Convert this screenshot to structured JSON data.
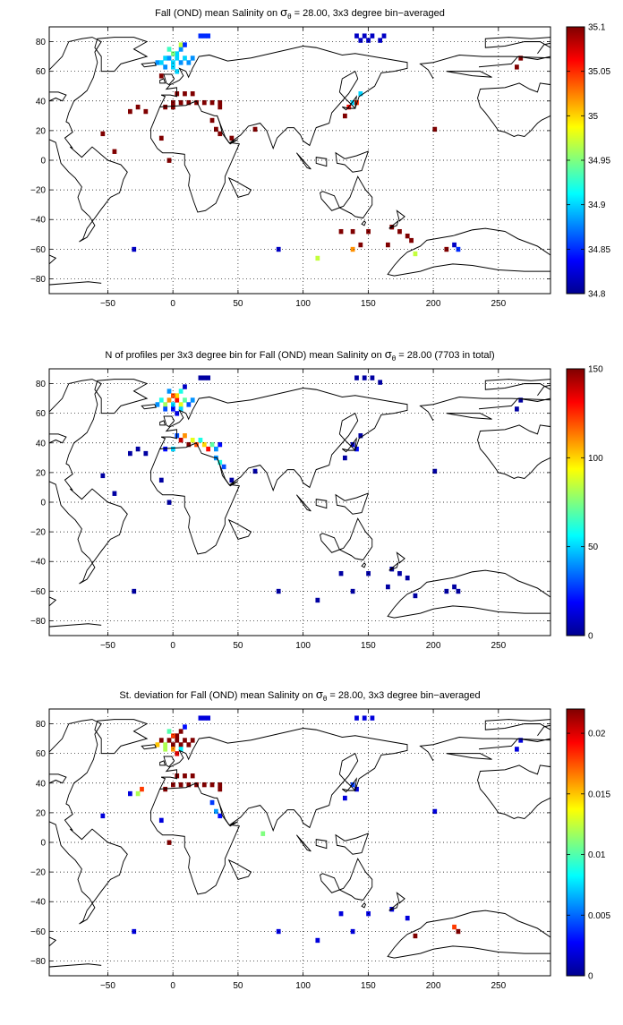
{
  "figure": {
    "panels": [
      {
        "title_prefix": "Fall (OND) mean Salinity on ",
        "title_sigma": "σ",
        "title_sub": "θ",
        "title_suffix": " = 28.00, 3x3 degree bin−averaged",
        "x_ticks": [
          "−50",
          "0",
          "50",
          "100",
          "150",
          "200",
          "250"
        ],
        "y_ticks": [
          "80",
          "60",
          "40",
          "20",
          "0",
          "−20",
          "−40",
          "−60",
          "−80"
        ],
        "colorbar_ticks": [
          "35.1",
          "35.05",
          "35",
          "34.95",
          "34.9",
          "34.85",
          "34.8"
        ],
        "colorbar_min": 34.8,
        "colorbar_max": 35.1
      },
      {
        "title_prefix": "N of profiles per 3x3 degree bin for Fall (OND) mean Salinity on ",
        "title_sigma": "σ",
        "title_sub": "θ",
        "title_suffix": " = 28.00 (7703 in total)",
        "x_ticks": [
          "−50",
          "0",
          "50",
          "100",
          "150",
          "200",
          "250"
        ],
        "y_ticks": [
          "80",
          "60",
          "40",
          "20",
          "0",
          "−20",
          "−40",
          "−60",
          "−80"
        ],
        "colorbar_ticks": [
          "150",
          "100",
          "50",
          "0"
        ],
        "colorbar_min": 0,
        "colorbar_max": 150
      },
      {
        "title_prefix": "St. deviation for Fall (OND) mean Salinity on ",
        "title_sigma": "σ",
        "title_sub": "θ",
        "title_suffix": " = 28.00, 3x3 degree bin−averaged",
        "x_ticks": [
          "−50",
          "0",
          "50",
          "100",
          "150",
          "200",
          "250"
        ],
        "y_ticks": [
          "80",
          "60",
          "40",
          "20",
          "0",
          "−20",
          "−40",
          "−60",
          "−80"
        ],
        "colorbar_ticks": [
          "0.02",
          "0.015",
          "0.01",
          "0.005",
          "0"
        ],
        "colorbar_min": 0,
        "colorbar_max": 0.022
      }
    ]
  },
  "chart_data": [
    {
      "type": "heatmap",
      "title": "Fall (OND) mean Salinity on σθ = 28.00, 3x3 degree bin−averaged",
      "xlim": [
        -95,
        290
      ],
      "ylim": [
        -90,
        90
      ],
      "x_ticks": [
        -50,
        0,
        50,
        100,
        150,
        200,
        250
      ],
      "y_ticks": [
        80,
        60,
        40,
        20,
        0,
        -20,
        -40,
        -60,
        -80
      ],
      "grid": true,
      "colorbar": {
        "min": 34.8,
        "max": 35.1,
        "placement": "right",
        "colormap": "jet"
      },
      "bin_size_deg": 3,
      "cells": [
        [
          -12,
          66,
          34.88
        ],
        [
          -9,
          66,
          34.9
        ],
        [
          -6,
          69,
          34.9
        ],
        [
          -3,
          69,
          34.88
        ],
        [
          0,
          66,
          34.9
        ],
        [
          3,
          69,
          34.9
        ],
        [
          6,
          66,
          34.88
        ],
        [
          9,
          69,
          34.9
        ],
        [
          12,
          66,
          34.88
        ],
        [
          15,
          69,
          34.88
        ],
        [
          3,
          72,
          34.9
        ],
        [
          6,
          75,
          34.88
        ],
        [
          -3,
          75,
          34.93
        ],
        [
          0,
          72,
          34.95
        ],
        [
          6,
          78,
          34.97
        ],
        [
          -6,
          63,
          34.88
        ],
        [
          0,
          63,
          34.9
        ],
        [
          3,
          60,
          34.9
        ],
        [
          9,
          78,
          34.85
        ],
        [
          21,
          84,
          34.85
        ],
        [
          24,
          84,
          34.85
        ],
        [
          27,
          84,
          34.85
        ],
        [
          3,
          45,
          35.1
        ],
        [
          9,
          45,
          35.1
        ],
        [
          15,
          45,
          35.1
        ],
        [
          0,
          39,
          35.1
        ],
        [
          6,
          39,
          35.1
        ],
        [
          12,
          39,
          35.1
        ],
        [
          18,
          39,
          35.1
        ],
        [
          24,
          39,
          35.1
        ],
        [
          30,
          39,
          35.1
        ],
        [
          36,
          39,
          35.1
        ],
        [
          -6,
          36,
          35.1
        ],
        [
          0,
          36,
          35.1
        ],
        [
          36,
          36,
          35.1
        ],
        [
          -27,
          36,
          35.1
        ],
        [
          -21,
          33,
          35.1
        ],
        [
          -33,
          33,
          35.1
        ],
        [
          -9,
          57,
          35.1
        ],
        [
          30,
          27,
          35.1
        ],
        [
          33,
          21,
          35.1
        ],
        [
          36,
          18,
          35.1
        ],
        [
          -54,
          18,
          35.1
        ],
        [
          -45,
          6,
          35.1
        ],
        [
          -9,
          15,
          35.1
        ],
        [
          -3,
          0,
          35.1
        ],
        [
          45,
          15,
          35.1
        ],
        [
          63,
          21,
          35.1
        ],
        [
          132,
          30,
          35.1
        ],
        [
          138,
          39,
          34.9
        ],
        [
          141,
          39,
          35.05
        ],
        [
          135,
          36,
          35.06
        ],
        [
          144,
          45,
          34.9
        ],
        [
          141,
          84,
          34.82
        ],
        [
          144,
          81,
          34.82
        ],
        [
          147,
          84,
          34.82
        ],
        [
          150,
          81,
          34.82
        ],
        [
          153,
          84,
          34.82
        ],
        [
          159,
          81,
          34.82
        ],
        [
          162,
          84,
          34.82
        ],
        [
          201,
          21,
          35.1
        ],
        [
          267,
          69,
          35.1
        ],
        [
          264,
          63,
          35.1
        ],
        [
          -30,
          -60,
          34.82
        ],
        [
          81,
          -60,
          34.82
        ],
        [
          111,
          -66,
          34.97
        ],
        [
          129,
          -48,
          35.1
        ],
        [
          138,
          -48,
          35.1
        ],
        [
          150,
          -48,
          35.1
        ],
        [
          138,
          -60,
          35.02
        ],
        [
          144,
          -57,
          35.1
        ],
        [
          165,
          -57,
          35.1
        ],
        [
          168,
          -45,
          35.1
        ],
        [
          174,
          -48,
          35.1
        ],
        [
          180,
          -51,
          35.1
        ],
        [
          183,
          -54,
          35.1
        ],
        [
          186,
          -63,
          34.97
        ],
        [
          210,
          -60,
          35.1
        ],
        [
          216,
          -57,
          34.82
        ],
        [
          219,
          -60,
          34.85
        ]
      ]
    },
    {
      "type": "heatmap",
      "title": "N of profiles per 3x3 degree bin for Fall (OND) mean Salinity on σθ = 28.00 (7703 in total)",
      "xlim": [
        -95,
        290
      ],
      "ylim": [
        -90,
        90
      ],
      "x_ticks": [
        -50,
        0,
        50,
        100,
        150,
        200,
        250
      ],
      "y_ticks": [
        80,
        60,
        40,
        20,
        0,
        -20,
        -40,
        -60,
        -80
      ],
      "grid": true,
      "colorbar": {
        "min": 0,
        "max": 150,
        "placement": "right",
        "colormap": "jet"
      },
      "bin_size_deg": 3,
      "cells": [
        [
          -12,
          66,
          40
        ],
        [
          -9,
          69,
          60
        ],
        [
          -6,
          66,
          80
        ],
        [
          -3,
          69,
          110
        ],
        [
          0,
          66,
          50
        ],
        [
          3,
          69,
          130
        ],
        [
          6,
          66,
          90
        ],
        [
          9,
          69,
          70
        ],
        [
          12,
          66,
          30
        ],
        [
          15,
          69,
          40
        ],
        [
          3,
          72,
          100
        ],
        [
          6,
          75,
          60
        ],
        [
          -3,
          75,
          40
        ],
        [
          0,
          72,
          120
        ],
        [
          6,
          63,
          50
        ],
        [
          0,
          63,
          20
        ],
        [
          -6,
          63,
          30
        ],
        [
          3,
          60,
          15
        ],
        [
          9,
          78,
          10
        ],
        [
          21,
          84,
          5
        ],
        [
          24,
          84,
          5
        ],
        [
          27,
          84,
          5
        ],
        [
          3,
          45,
          30
        ],
        [
          6,
          42,
          140
        ],
        [
          9,
          45,
          110
        ],
        [
          12,
          39,
          150
        ],
        [
          15,
          42,
          90
        ],
        [
          18,
          39,
          120
        ],
        [
          21,
          42,
          60
        ],
        [
          24,
          39,
          100
        ],
        [
          27,
          36,
          130
        ],
        [
          30,
          39,
          70
        ],
        [
          33,
          36,
          40
        ],
        [
          36,
          39,
          20
        ],
        [
          0,
          36,
          50
        ],
        [
          -6,
          36,
          20
        ],
        [
          33,
          30,
          40
        ],
        [
          36,
          27,
          60
        ],
        [
          39,
          24,
          30
        ],
        [
          -27,
          36,
          5
        ],
        [
          -21,
          33,
          5
        ],
        [
          -33,
          33,
          5
        ],
        [
          -54,
          18,
          5
        ],
        [
          -45,
          6,
          5
        ],
        [
          -9,
          15,
          5
        ],
        [
          -3,
          0,
          5
        ],
        [
          45,
          15,
          5
        ],
        [
          63,
          21,
          5
        ],
        [
          132,
          30,
          5
        ],
        [
          138,
          39,
          10
        ],
        [
          141,
          36,
          20
        ],
        [
          144,
          45,
          5
        ],
        [
          141,
          84,
          5
        ],
        [
          147,
          84,
          5
        ],
        [
          153,
          84,
          5
        ],
        [
          159,
          81,
          5
        ],
        [
          201,
          21,
          5
        ],
        [
          267,
          69,
          5
        ],
        [
          264,
          63,
          5
        ],
        [
          -30,
          -60,
          5
        ],
        [
          81,
          -60,
          5
        ],
        [
          111,
          -66,
          5
        ],
        [
          129,
          -48,
          5
        ],
        [
          138,
          -60,
          5
        ],
        [
          150,
          -48,
          5
        ],
        [
          165,
          -57,
          5
        ],
        [
          168,
          -45,
          5
        ],
        [
          174,
          -48,
          5
        ],
        [
          180,
          -51,
          5
        ],
        [
          186,
          -63,
          5
        ],
        [
          210,
          -60,
          5
        ],
        [
          216,
          -57,
          5
        ],
        [
          219,
          -60,
          5
        ]
      ]
    },
    {
      "type": "heatmap",
      "title": "St. deviation for Fall (OND) mean Salinity on σθ = 28.00, 3x3 degree bin−averaged",
      "xlim": [
        -95,
        290
      ],
      "ylim": [
        -90,
        90
      ],
      "x_ticks": [
        -50,
        0,
        50,
        100,
        150,
        200,
        250
      ],
      "y_ticks": [
        80,
        60,
        40,
        20,
        0,
        -20,
        -40,
        -60,
        -80
      ],
      "grid": true,
      "colorbar": {
        "min": 0,
        "max": 0.022,
        "placement": "right",
        "colormap": "jet"
      },
      "bin_size_deg": 3,
      "cells": [
        [
          -12,
          66,
          0.015
        ],
        [
          -9,
          69,
          0.022
        ],
        [
          -6,
          66,
          0.012
        ],
        [
          -3,
          69,
          0.022
        ],
        [
          0,
          66,
          0.022
        ],
        [
          3,
          69,
          0.022
        ],
        [
          6,
          66,
          0.022
        ],
        [
          9,
          69,
          0.022
        ],
        [
          12,
          66,
          0.022
        ],
        [
          15,
          69,
          0.022
        ],
        [
          3,
          72,
          0.022
        ],
        [
          6,
          75,
          0.022
        ],
        [
          0,
          72,
          0.018
        ],
        [
          -3,
          75,
          0.01
        ],
        [
          6,
          63,
          0.008
        ],
        [
          0,
          63,
          0.016
        ],
        [
          -6,
          63,
          0.012
        ],
        [
          3,
          60,
          0.02
        ],
        [
          9,
          78,
          0.003
        ],
        [
          21,
          84,
          0.002
        ],
        [
          24,
          84,
          0.002
        ],
        [
          27,
          84,
          0.002
        ],
        [
          3,
          45,
          0.022
        ],
        [
          9,
          45,
          0.022
        ],
        [
          15,
          45,
          0.022
        ],
        [
          0,
          39,
          0.022
        ],
        [
          6,
          39,
          0.022
        ],
        [
          12,
          39,
          0.022
        ],
        [
          18,
          39,
          0.022
        ],
        [
          24,
          39,
          0.022
        ],
        [
          30,
          39,
          0.022
        ],
        [
          36,
          39,
          0.022
        ],
        [
          -6,
          36,
          0.022
        ],
        [
          36,
          36,
          0.022
        ],
        [
          -27,
          33,
          0.012
        ],
        [
          -24,
          36,
          0.018
        ],
        [
          -33,
          33,
          0.002
        ],
        [
          -54,
          18,
          0.002
        ],
        [
          -9,
          15,
          0.002
        ],
        [
          -3,
          0,
          0.022
        ],
        [
          30,
          27,
          0.004
        ],
        [
          33,
          21,
          0.006
        ],
        [
          36,
          18,
          0.003
        ],
        [
          69,
          6,
          0.011
        ],
        [
          132,
          30,
          0.002
        ],
        [
          138,
          39,
          0.004
        ],
        [
          141,
          36,
          0.002
        ],
        [
          141,
          84,
          0.002
        ],
        [
          147,
          84,
          0.002
        ],
        [
          153,
          84,
          0.002
        ],
        [
          201,
          21,
          0.002
        ],
        [
          267,
          69,
          0.002
        ],
        [
          264,
          63,
          0.002
        ],
        [
          -30,
          -60,
          0.002
        ],
        [
          81,
          -60,
          0.002
        ],
        [
          111,
          -66,
          0.002
        ],
        [
          129,
          -48,
          0.002
        ],
        [
          138,
          -60,
          0.002
        ],
        [
          150,
          -48,
          0.002
        ],
        [
          168,
          -45,
          0.002
        ],
        [
          180,
          -51,
          0.002
        ],
        [
          186,
          -63,
          0.022
        ],
        [
          216,
          -57,
          0.018
        ],
        [
          219,
          -60,
          0.022
        ]
      ]
    }
  ]
}
